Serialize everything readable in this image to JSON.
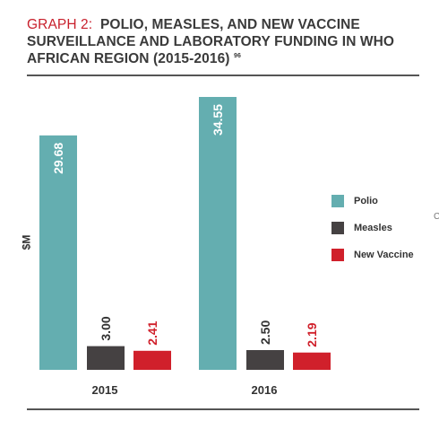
{
  "title": {
    "prefix": "GRAPH 2:",
    "line1": "POLIO, MEASLES, AND NEW VACCINE",
    "line2": "SURVEILLANCE AND LABORATORY FUNDING IN WHO",
    "line3": "AFRICAN REGION (2015-2016)",
    "footnote": "96"
  },
  "edge_mark": "C",
  "chart_data": {
    "type": "bar",
    "title": "GRAPH 2: POLIO, MEASLES, AND NEW VACCINE SURVEILLANCE AND LABORATORY FUNDING IN WHO AFRICAN REGION (2015-2016)",
    "ylabel": "$M",
    "xlabel": "",
    "categories": [
      "2015",
      "2016"
    ],
    "ylim": [
      0,
      34.55
    ],
    "grid": false,
    "legend_position": "right",
    "series": [
      {
        "name": "Polio",
        "color": "#64aeb0",
        "values": [
          29.68,
          34.55
        ],
        "labels": [
          "29.68",
          "34.55"
        ],
        "label_color": "#ffffff"
      },
      {
        "name": "Measles",
        "color": "#454142",
        "values": [
          3.0,
          2.5
        ],
        "labels": [
          "3.00",
          "2.50"
        ],
        "label_color": "#333333"
      },
      {
        "name": "New Vaccine",
        "color": "#d0202b",
        "values": [
          2.41,
          2.19
        ],
        "labels": [
          "2.41",
          "2.19"
        ],
        "label_color": "#d0202b"
      }
    ]
  }
}
